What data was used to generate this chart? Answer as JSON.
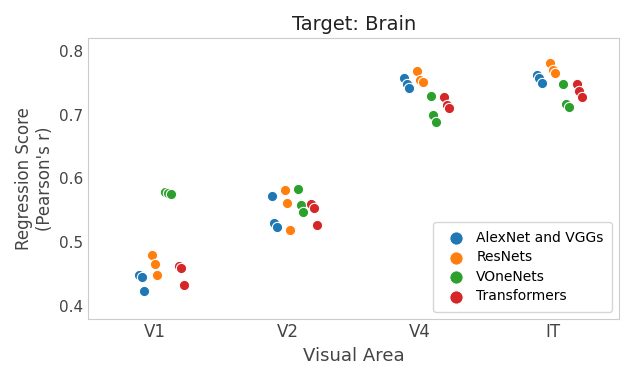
{
  "title": "Target: Brain",
  "xlabel": "Visual Area",
  "ylabel": "Regression Score\n(Pearson's r)",
  "ylim": [
    0.38,
    0.82
  ],
  "xtick_labels": [
    "V1",
    "V2",
    "V4",
    "IT"
  ],
  "xtick_positions": [
    1,
    2,
    3,
    4
  ],
  "legend_labels": [
    "AlexNet and VGGs",
    "ResNets",
    "VOneNets",
    "Transformers"
  ],
  "colors": {
    "AlexNet": "#1f77b4",
    "ResNets": "#ff7f0e",
    "VOneNets": "#2ca02c",
    "Transformers": "#d62728"
  },
  "data": {
    "AlexNet": {
      "V1": [
        0.448,
        0.445,
        0.424
      ],
      "V2": [
        0.572,
        0.53,
        0.524
      ],
      "V4": [
        0.758,
        0.748,
        0.742
      ],
      "IT": [
        0.762,
        0.757,
        0.75
      ]
    },
    "ResNets": {
      "V1": [
        0.48,
        0.466,
        0.448
      ],
      "V2": [
        0.582,
        0.561,
        0.519
      ],
      "V4": [
        0.768,
        0.755,
        0.752
      ],
      "IT": [
        0.782,
        0.77,
        0.765
      ]
    },
    "VOneNets": {
      "V1": [
        0.578,
        0.577,
        0.575
      ],
      "V2": [
        0.584,
        0.558,
        0.548
      ],
      "V4": [
        0.73,
        0.699,
        0.688
      ],
      "IT": [
        0.749,
        0.717,
        0.712
      ]
    },
    "Transformers": {
      "V1": [
        0.463,
        0.46,
        0.432
      ],
      "V2": [
        0.56,
        0.553,
        0.527
      ],
      "V4": [
        0.728,
        0.715,
        0.71
      ],
      "IT": [
        0.748,
        0.738,
        0.728
      ]
    }
  },
  "marker_size": 55,
  "x_offsets": {
    "AlexNet": -0.1,
    "ResNets": 0.0,
    "VOneNets": 0.1,
    "Transformers": 0.2
  },
  "x_jitter": {
    "AlexNet": [
      -0.02,
      0.0,
      0.02
    ],
    "ResNets": [
      -0.02,
      0.0,
      0.02
    ],
    "VOneNets": [
      -0.02,
      0.0,
      0.02
    ],
    "Transformers": [
      -0.02,
      0.0,
      0.02
    ]
  }
}
